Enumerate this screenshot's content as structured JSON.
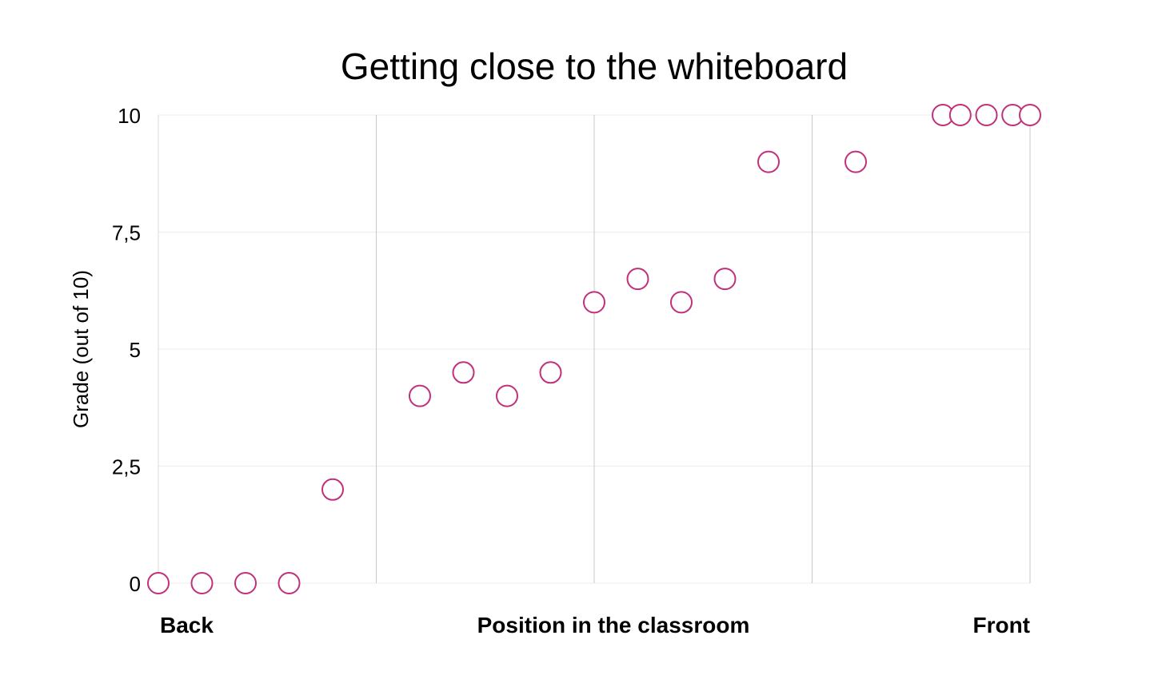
{
  "chart_data": {
    "type": "scatter",
    "title": "Getting close to the whiteboard",
    "ylabel": "Grade (out of 10)",
    "xlabel": "Position in the classroom",
    "x_annotations": {
      "left": "Back",
      "center": "Position in the classroom",
      "right": "Front"
    },
    "xlim": [
      0,
      20
    ],
    "ylim": [
      0,
      10
    ],
    "yticks": [
      0,
      2.5,
      5,
      7.5,
      10
    ],
    "ytick_labels": [
      "0",
      "2,5",
      "5",
      "7,5",
      "10"
    ],
    "xgrid": [
      0,
      5,
      10,
      15,
      20
    ],
    "grid": true,
    "marker_color": "#c0317a",
    "marker_fill": "#ffffff",
    "points": [
      {
        "x": 0,
        "y": 0
      },
      {
        "x": 1,
        "y": 0
      },
      {
        "x": 2,
        "y": 0
      },
      {
        "x": 3,
        "y": 0
      },
      {
        "x": 4,
        "y": 2
      },
      {
        "x": 6,
        "y": 4
      },
      {
        "x": 7,
        "y": 4.5
      },
      {
        "x": 8,
        "y": 4
      },
      {
        "x": 9,
        "y": 4.5
      },
      {
        "x": 10,
        "y": 6
      },
      {
        "x": 11,
        "y": 6.5
      },
      {
        "x": 12,
        "y": 6
      },
      {
        "x": 13,
        "y": 6.5
      },
      {
        "x": 14,
        "y": 9
      },
      {
        "x": 16,
        "y": 9
      },
      {
        "x": 18,
        "y": 10
      },
      {
        "x": 18.4,
        "y": 10
      },
      {
        "x": 19,
        "y": 10
      },
      {
        "x": 19.6,
        "y": 10
      },
      {
        "x": 20,
        "y": 10
      }
    ]
  }
}
